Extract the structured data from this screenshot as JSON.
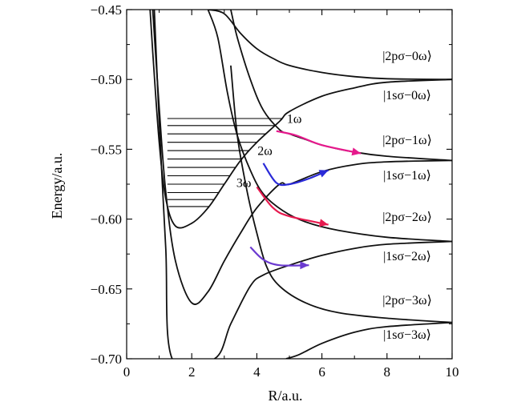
{
  "chart_data": {
    "type": "line",
    "title": "",
    "xlabel": "R/a.u.",
    "ylabel": "Energy/a.u.",
    "xlim": [
      0,
      10
    ],
    "ylim": [
      -0.7,
      -0.45
    ],
    "x_ticks": [
      "0",
      "2",
      "4",
      "6",
      "8",
      "10"
    ],
    "y_ticks": [
      "-0.45",
      "-0.50",
      "-0.55",
      "-0.60",
      "-0.65",
      "-0.70"
    ],
    "grid": false,
    "series": [
      {
        "name": "|2pσ-0ω⟩",
        "asymptote": -0.5,
        "points": [
          [
            2.5,
            -0.45
          ],
          [
            3.0,
            -0.453
          ],
          [
            3.5,
            -0.467
          ],
          [
            4.0,
            -0.478
          ],
          [
            4.5,
            -0.485
          ],
          [
            5.0,
            -0.49
          ],
          [
            6.0,
            -0.495
          ],
          [
            7.0,
            -0.498
          ],
          [
            8.0,
            -0.4995
          ],
          [
            10.0,
            -0.5
          ]
        ]
      },
      {
        "name": "|1sσ-0ω⟩",
        "asymptote": -0.5,
        "points": [
          [
            0.72,
            -0.45
          ],
          [
            0.8,
            -0.48
          ],
          [
            1.0,
            -0.545
          ],
          [
            1.2,
            -0.585
          ],
          [
            1.5,
            -0.605
          ],
          [
            2.0,
            -0.603
          ],
          [
            2.5,
            -0.592
          ],
          [
            3.0,
            -0.575
          ],
          [
            3.5,
            -0.558
          ],
          [
            4.0,
            -0.545
          ],
          [
            4.7,
            -0.53
          ],
          [
            5.0,
            -0.523
          ],
          [
            6.0,
            -0.512
          ],
          [
            7.0,
            -0.506
          ],
          [
            8.0,
            -0.502
          ],
          [
            10.0,
            -0.5
          ]
        ]
      },
      {
        "name": "|2pσ-1ω⟩",
        "asymptote": -0.558,
        "points": [
          [
            3.2,
            -0.45
          ],
          [
            3.4,
            -0.47
          ],
          [
            3.8,
            -0.5
          ],
          [
            4.2,
            -0.522
          ],
          [
            4.7,
            -0.536
          ],
          [
            5.0,
            -0.539
          ],
          [
            5.5,
            -0.543
          ],
          [
            6.0,
            -0.547
          ],
          [
            7.0,
            -0.552
          ],
          [
            8.0,
            -0.555
          ],
          [
            10.0,
            -0.558
          ]
        ]
      },
      {
        "name": "|1sσ-1ω⟩",
        "asymptote": -0.558,
        "points": [
          [
            0.8,
            -0.45
          ],
          [
            1.0,
            -0.52
          ],
          [
            1.2,
            -0.58
          ],
          [
            1.5,
            -0.63
          ],
          [
            2.0,
            -0.66
          ],
          [
            2.5,
            -0.652
          ],
          [
            3.0,
            -0.63
          ],
          [
            3.5,
            -0.61
          ],
          [
            4.0,
            -0.592
          ],
          [
            4.7,
            -0.575
          ],
          [
            5.0,
            -0.575
          ],
          [
            6.0,
            -0.566
          ],
          [
            7.0,
            -0.561
          ],
          [
            8.0,
            -0.559
          ],
          [
            10.0,
            -0.558
          ]
        ]
      },
      {
        "name": "|2pσ-2ω⟩",
        "asymptote": -0.616,
        "points": [
          [
            2.5,
            -0.45
          ],
          [
            2.8,
            -0.47
          ],
          [
            3.1,
            -0.51
          ],
          [
            3.4,
            -0.54
          ],
          [
            3.8,
            -0.565
          ],
          [
            4.2,
            -0.582
          ],
          [
            4.8,
            -0.594
          ],
          [
            5.5,
            -0.602
          ],
          [
            6.5,
            -0.608
          ],
          [
            8.0,
            -0.613
          ],
          [
            10.0,
            -0.616
          ]
        ]
      },
      {
        "name": "|1sσ-2ω⟩",
        "asymptote": -0.616,
        "points": [
          [
            0.85,
            -0.45
          ],
          [
            1.0,
            -0.53
          ],
          [
            1.2,
            -0.62
          ],
          [
            1.4,
            -0.7
          ],
          [
            2.7,
            -0.7
          ],
          [
            3.2,
            -0.675
          ],
          [
            3.8,
            -0.648
          ],
          [
            4.2,
            -0.64
          ],
          [
            5.0,
            -0.633
          ],
          [
            6.0,
            -0.626
          ],
          [
            7.0,
            -0.621
          ],
          [
            8.0,
            -0.618
          ],
          [
            10.0,
            -0.616
          ]
        ]
      },
      {
        "name": "|2pσ-3ω⟩",
        "asymptote": -0.674,
        "points": [
          [
            3.2,
            -0.49
          ],
          [
            3.4,
            -0.54
          ],
          [
            3.7,
            -0.58
          ],
          [
            4.0,
            -0.61
          ],
          [
            4.3,
            -0.634
          ],
          [
            4.7,
            -0.648
          ],
          [
            5.5,
            -0.66
          ],
          [
            6.5,
            -0.667
          ],
          [
            8.0,
            -0.671
          ],
          [
            10.0,
            -0.674
          ]
        ]
      },
      {
        "name": "|1sσ-3ω⟩",
        "asymptote": -0.674,
        "points": [
          [
            4.9,
            -0.7
          ],
          [
            5.3,
            -0.697
          ],
          [
            6.0,
            -0.689
          ],
          [
            7.0,
            -0.681
          ],
          [
            8.0,
            -0.677
          ],
          [
            10.0,
            -0.674
          ]
        ]
      }
    ],
    "vibrational_levels": [
      -0.528,
      -0.533,
      -0.539,
      -0.545,
      -0.551,
      -0.557,
      -0.563,
      -0.569,
      -0.575,
      -0.581,
      -0.586,
      -0.591
    ],
    "annotations": [
      {
        "text": "1ω",
        "x": 5.15,
        "y": -0.531
      },
      {
        "text": "2ω",
        "x": 4.25,
        "y": -0.554
      },
      {
        "text": "3ω",
        "x": 3.6,
        "y": -0.577
      }
    ],
    "arrows": [
      {
        "name": "1ω dissociation",
        "color": "#e6198c",
        "points": [
          [
            4.6,
            -0.537
          ],
          [
            5.2,
            -0.54
          ],
          [
            6.0,
            -0.547
          ],
          [
            7.2,
            -0.553
          ]
        ]
      },
      {
        "name": "2ω dissociation",
        "color": "#2a2ad8",
        "points": [
          [
            4.2,
            -0.56
          ],
          [
            4.6,
            -0.574
          ],
          [
            5.0,
            -0.575
          ],
          [
            5.6,
            -0.571
          ],
          [
            6.2,
            -0.565
          ]
        ]
      },
      {
        "name": "2ω to 2pσ-2ω",
        "color": "#e61a4f",
        "points": [
          [
            4.0,
            -0.577
          ],
          [
            4.5,
            -0.592
          ],
          [
            5.0,
            -0.598
          ],
          [
            6.2,
            -0.604
          ]
        ]
      },
      {
        "name": "3ω dissociation",
        "color": "#6b3ad0",
        "points": [
          [
            3.8,
            -0.62
          ],
          [
            4.2,
            -0.629
          ],
          [
            4.7,
            -0.633
          ],
          [
            5.6,
            -0.633
          ]
        ]
      }
    ],
    "state_labels": [
      "|2pσ−0ω⟩",
      "|1sσ−0ω⟩",
      "|2pσ−1ω⟩",
      "|1sσ−1ω⟩",
      "|2pσ−2ω⟩",
      "|1sσ−2ω⟩",
      "|2pσ−3ω⟩",
      "|1sσ−3ω⟩"
    ],
    "colors": {
      "curve": "#111111",
      "axis": "#000000"
    }
  }
}
